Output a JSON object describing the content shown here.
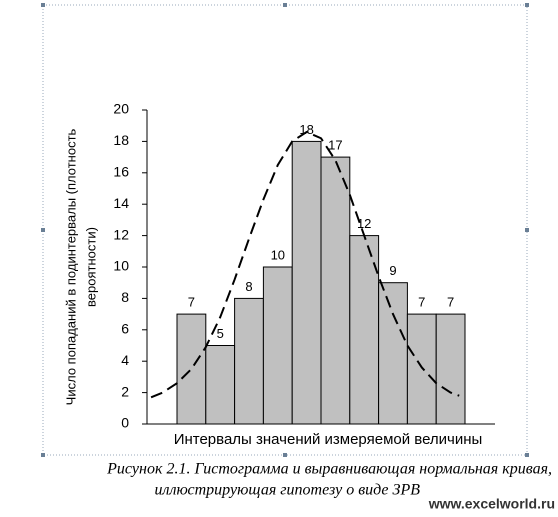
{
  "chart_data": {
    "type": "bar",
    "categories": [
      null,
      null,
      null,
      null,
      null,
      null,
      null,
      null,
      null,
      null
    ],
    "values": [
      7,
      5,
      8,
      10,
      18,
      17,
      12,
      9,
      7,
      7
    ],
    "color": "#c0c0c0",
    "ylim": [
      0,
      20
    ],
    "yticks": [
      0,
      2,
      4,
      6,
      8,
      10,
      12,
      14,
      16,
      18,
      20
    ],
    "ylabel": [
      "Число попаданий в подинтервалы (плотность",
      "вероятности)"
    ],
    "xlabel": "Интервалы значений измеряемой величины",
    "curve": {
      "color": "#000000",
      "x": [
        -1.4,
        -1,
        -0.5,
        0,
        0.5,
        1,
        1.5,
        2,
        2.5,
        3,
        3.5,
        4,
        4.5,
        5,
        5.5,
        6,
        6.5,
        7,
        7.5,
        8,
        8.5,
        9,
        9.3
      ],
      "values": [
        1.7,
        2.0,
        2.6,
        3.5,
        4.9,
        6.8,
        9.2,
        11.8,
        14.3,
        16.5,
        18.0,
        18.6,
        18.2,
        16.8,
        14.6,
        12.0,
        9.4,
        7.0,
        5.0,
        3.6,
        2.6,
        2.0,
        1.8
      ]
    }
  },
  "caption": [
    "Рисунок 2.1. Гистограмма и выравнивающая нормальная кривая,",
    "иллюстрирующая гипотезу о виде ЗРВ"
  ],
  "watermark": "www.excelworld.ru"
}
